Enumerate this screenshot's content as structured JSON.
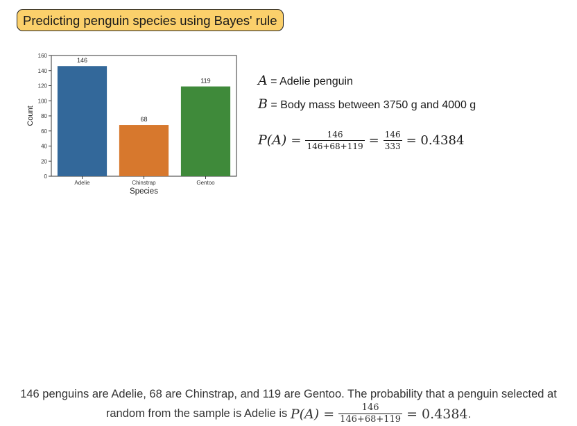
{
  "title": "Predicting penguin species using Bayes' rule",
  "chart_data": {
    "type": "bar",
    "categories": [
      "Adelie",
      "Chinstrap",
      "Gentoo"
    ],
    "values": [
      146,
      68,
      119
    ],
    "colors": [
      "#33689a",
      "#d7782d",
      "#3f8a3a"
    ],
    "xlabel": "Species",
    "ylabel": "Count",
    "ylim": [
      0,
      160
    ],
    "yticks": [
      0,
      20,
      40,
      60,
      80,
      100,
      120,
      140,
      160
    ],
    "data_labels": [
      "146",
      "68",
      "119"
    ],
    "grid": false
  },
  "definitions": {
    "a_var": "A",
    "a_text": " = Adelie penguin",
    "b_var": "B",
    "b_text": " = Body mass between 3750 g and 4000 g"
  },
  "equation": {
    "lhs": "P(A)",
    "eq1": "=",
    "frac1_num": "146",
    "frac1_den": "146+68+119",
    "eq2": "=",
    "frac2_num": "146",
    "frac2_den": "333",
    "result": "= 0.4384"
  },
  "footer": {
    "line1": "146 penguins are Adelie, 68 are Chinstrap, and 119 are Gentoo. The probability that a penguin selected at",
    "line2_prefix": "random from the sample is Adelie is ",
    "lhs": "P(A)",
    "eq": "=",
    "frac_num": "146",
    "frac_den": "146+68+119",
    "result": "= 0.4384",
    "period": "."
  }
}
